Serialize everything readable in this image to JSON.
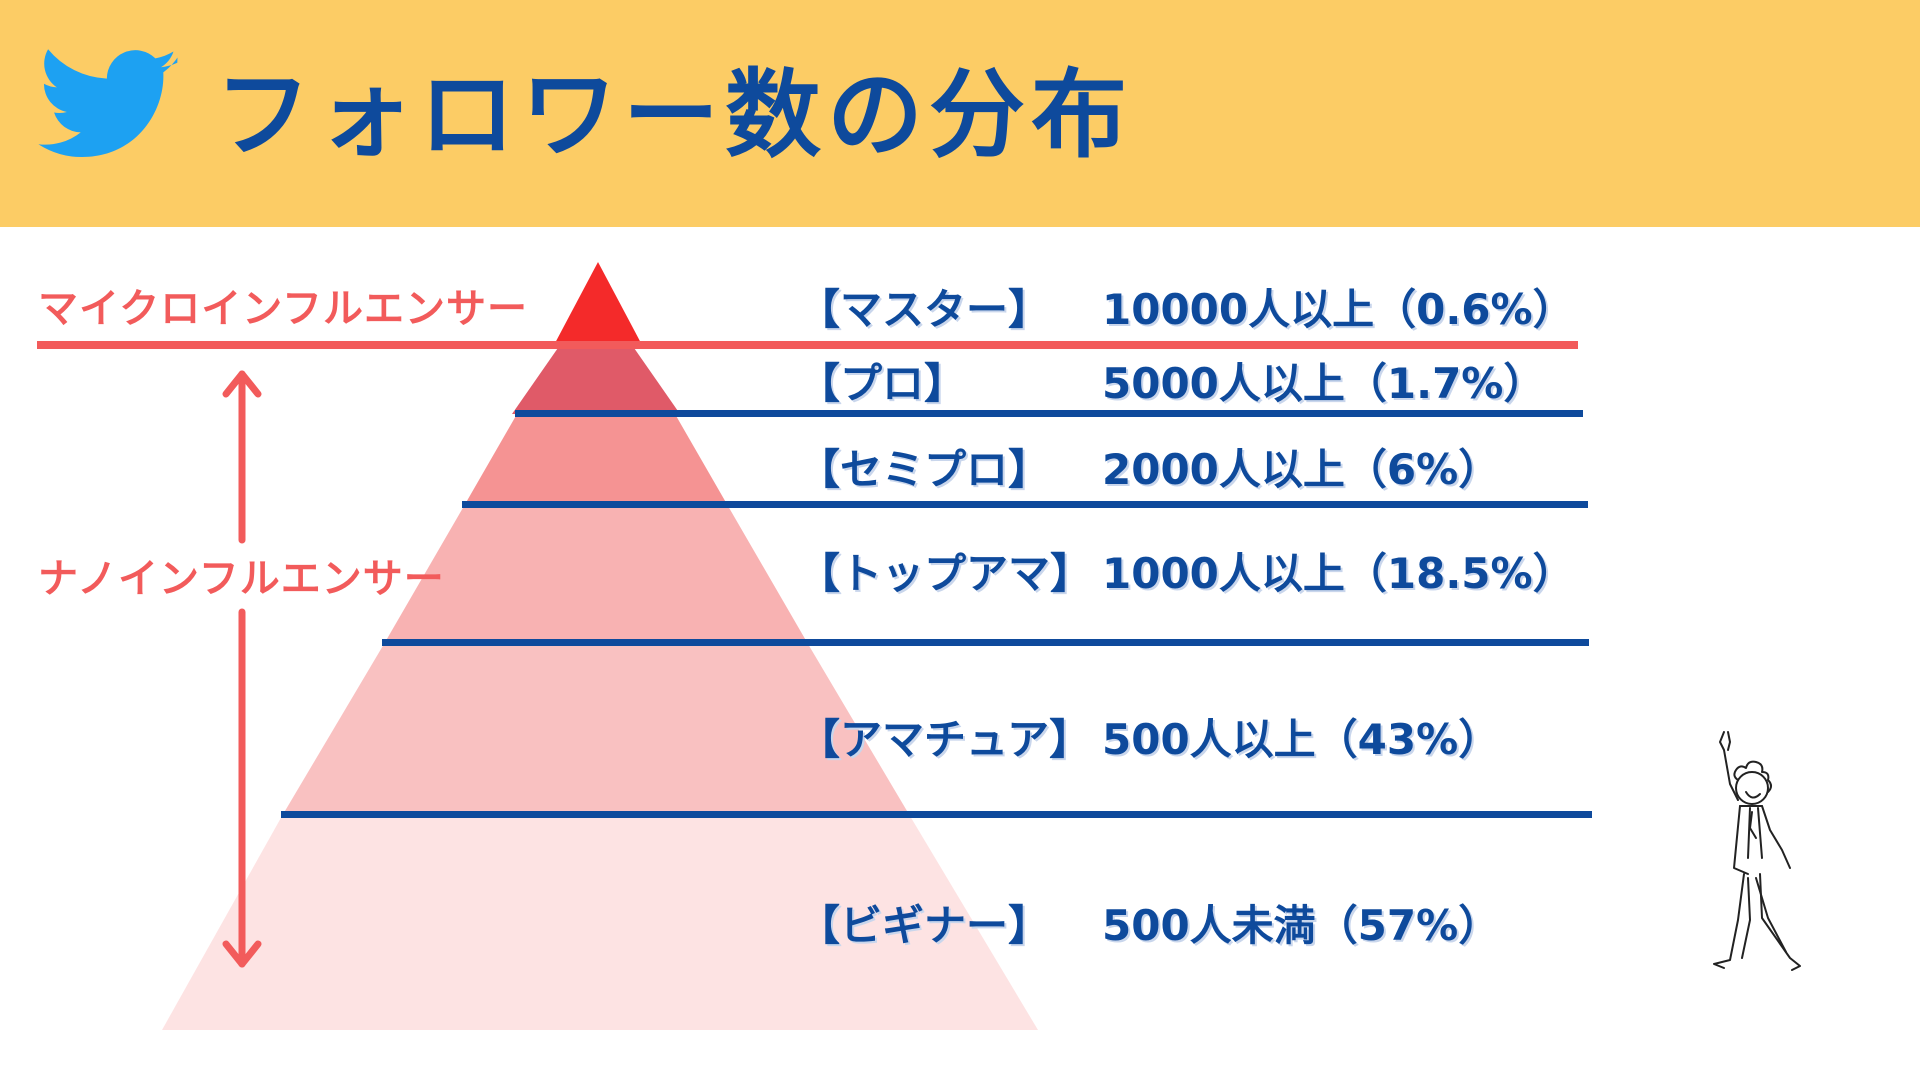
{
  "title": "フォロワー数の分布",
  "colors": {
    "header_bg": "#fccc65",
    "title_text": "#0e4a9c",
    "tier_text": "#0e4a9c",
    "divider_blue": "#0e4a9c",
    "accent_red": "#f25b5b",
    "bird_blue": "#1da1f2"
  },
  "side_labels": {
    "micro": "マイクロインフルエンサー",
    "nano": "ナノインフルエンサー"
  },
  "tiers": [
    {
      "name": "【マスター】",
      "desc": "10000人以上（0.6%）"
    },
    {
      "name": "【プロ】",
      "desc": "5000人以上（1.7%）"
    },
    {
      "name": "【セミプロ】",
      "desc": "2000人以上（6%）"
    },
    {
      "name": "【トップアマ】",
      "desc": "1000人以上（18.5%）"
    },
    {
      "name": "【アマチュア】",
      "desc": "500人以上（43%）"
    },
    {
      "name": "【ビギナー】",
      "desc": "500人未満（57%）"
    }
  ],
  "icons": {
    "logo": "twitter-bird-icon",
    "illustration": "dancing-man-illustration",
    "range_arrow": "double-arrow-icon"
  }
}
